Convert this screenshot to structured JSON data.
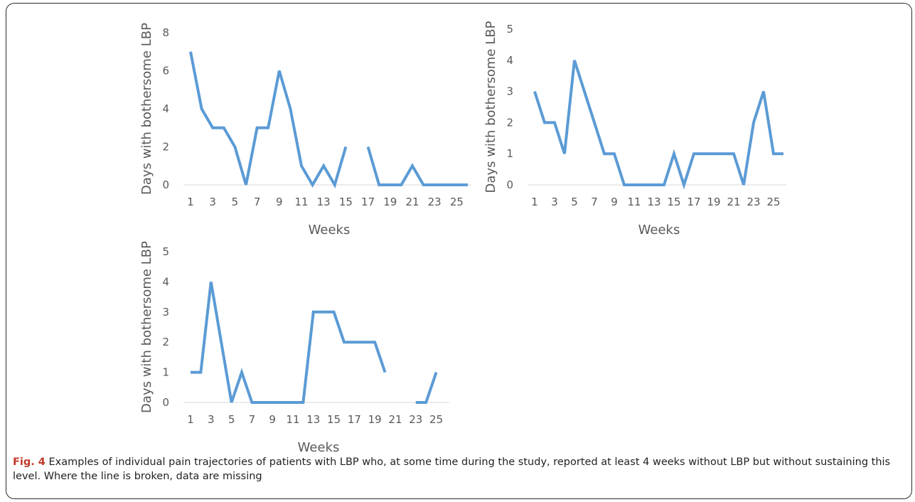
{
  "chart_data": [
    {
      "type": "line",
      "title": "",
      "xlabel": "Weeks",
      "ylabel": "Days with bothersome LBP",
      "ylim": [
        0,
        8
      ],
      "yticks": [
        "0",
        "2",
        "4",
        "6",
        "8"
      ],
      "xticks": [
        "1",
        "3",
        "5",
        "7",
        "9",
        "11",
        "13",
        "15",
        "17",
        "19",
        "21",
        "23",
        "25"
      ],
      "xlim": [
        1,
        26
      ],
      "series": [
        {
          "x": [
            1,
            2,
            3,
            4,
            5,
            6,
            7,
            8,
            9,
            10,
            11,
            12,
            13,
            14,
            15,
            16,
            17,
            18,
            19,
            20,
            21,
            22,
            23,
            24,
            25,
            26
          ],
          "values": [
            7,
            4,
            3,
            3,
            2,
            0,
            3,
            3,
            6,
            4,
            1,
            0,
            1,
            0,
            2,
            null,
            2,
            0,
            0,
            0,
            1,
            0,
            0,
            0,
            0,
            0
          ]
        }
      ],
      "color": "#5b9bd5"
    },
    {
      "type": "line",
      "title": "",
      "xlabel": "Weeks",
      "ylabel": "Days with bothersome LBP",
      "ylim": [
        0,
        5
      ],
      "yticks": [
        "0",
        "1",
        "2",
        "3",
        "4",
        "5"
      ],
      "xticks": [
        "1",
        "3",
        "5",
        "7",
        "9",
        "11",
        "13",
        "15",
        "17",
        "19",
        "21",
        "23",
        "25"
      ],
      "xlim": [
        1,
        26
      ],
      "series": [
        {
          "x": [
            1,
            2,
            3,
            4,
            5,
            6,
            7,
            8,
            9,
            10,
            11,
            12,
            13,
            14,
            15,
            16,
            17,
            18,
            19,
            20,
            21,
            22,
            23,
            24,
            25,
            26
          ],
          "values": [
            3,
            2,
            2,
            1,
            4,
            3,
            2,
            1,
            1,
            0,
            0,
            0,
            0,
            0,
            1,
            0,
            1,
            1,
            1,
            1,
            1,
            0,
            2,
            3,
            1,
            1
          ]
        }
      ],
      "color": "#5b9bd5"
    },
    {
      "type": "line",
      "title": "",
      "xlabel": "Weeks",
      "ylabel": "Days with bothersome LBP",
      "ylim": [
        0,
        5
      ],
      "yticks": [
        "0",
        "1",
        "2",
        "3",
        "4",
        "5"
      ],
      "xticks": [
        "1",
        "3",
        "5",
        "7",
        "9",
        "11",
        "13",
        "15",
        "17",
        "19",
        "21",
        "23",
        "25"
      ],
      "xlim": [
        1,
        26
      ],
      "series": [
        {
          "x": [
            1,
            2,
            3,
            4,
            5,
            6,
            7,
            8,
            9,
            10,
            11,
            12,
            13,
            14,
            15,
            16,
            17,
            18,
            19,
            20,
            21,
            22,
            23,
            24,
            25,
            26
          ],
          "values": [
            1,
            1,
            4,
            2,
            0,
            1,
            0,
            0,
            0,
            0,
            0,
            0,
            3,
            3,
            3,
            2,
            2,
            2,
            2,
            1,
            null,
            null,
            0,
            0,
            1,
            null
          ]
        }
      ],
      "color": "#5b9bd5"
    }
  ],
  "caption": {
    "label": "Fig. 4",
    "text": "Examples of individual pain trajectories of patients with LBP who, at some time during the study, reported at least 4 weeks without LBP but without sustaining this level. Where the line is broken, data are missing"
  }
}
